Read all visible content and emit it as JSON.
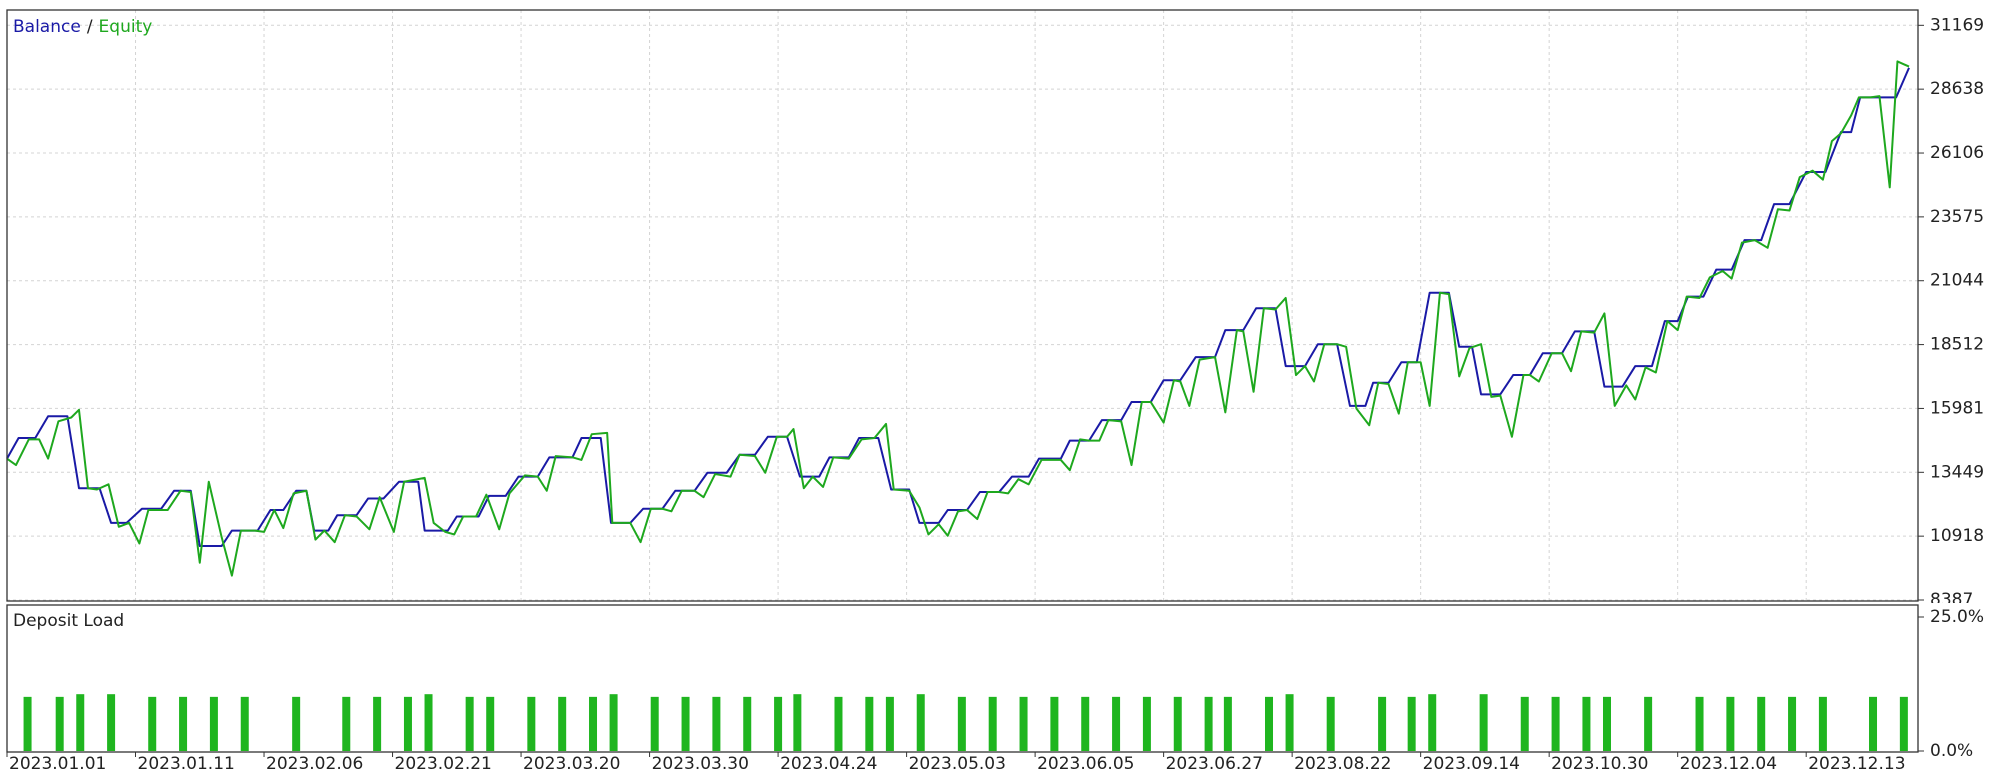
{
  "chart_data": [
    {
      "type": "line",
      "legend_separator": "/",
      "grid": true,
      "xlim": [
        0,
        148.7
      ],
      "ylim": [
        8387,
        31776
      ],
      "yticks": [
        8387,
        10918,
        13449,
        15981,
        18512,
        21044,
        23575,
        26106,
        28638,
        31169
      ],
      "xticks": [
        {
          "value": 0,
          "label": "2023.01.01"
        },
        {
          "value": 10,
          "label": "2023.01.11"
        },
        {
          "value": 20,
          "label": "2023.02.06"
        },
        {
          "value": 30,
          "label": "2023.02.21"
        },
        {
          "value": 40,
          "label": "2023.03.20"
        },
        {
          "value": 50,
          "label": "2023.03.30"
        },
        {
          "value": 60,
          "label": "2023.04.24"
        },
        {
          "value": 70,
          "label": "2023.05.03"
        },
        {
          "value": 80,
          "label": "2023.06.05"
        },
        {
          "value": 90,
          "label": "2023.06.27"
        },
        {
          "value": 100,
          "label": "2023.08.22"
        },
        {
          "value": 110,
          "label": "2023.09.14"
        },
        {
          "value": 120,
          "label": "2023.10.30"
        },
        {
          "value": 130,
          "label": "2023.12.04"
        },
        {
          "value": 140,
          "label": "2023.12.13"
        }
      ],
      "series": [
        {
          "name": "Balance",
          "color": "#1a1aa6",
          "x": [
            0,
            0.9,
            2.2,
            3.2,
            4.7,
            5.6,
            7.2,
            8.1,
            9.3,
            10.5,
            12,
            13,
            14.3,
            15,
            16.7,
            17.5,
            19.5,
            20.5,
            21.5,
            22.5,
            23.3,
            23.9,
            25,
            25.7,
            27.2,
            28.1,
            29.3,
            30.5,
            32,
            32.5,
            34.3,
            35,
            36.7,
            37.5,
            38.8,
            39.8,
            41.3,
            42.2,
            44,
            44.7,
            46.2,
            47,
            48.5,
            49.5,
            51,
            52,
            53.5,
            54.5,
            56,
            57,
            58.2,
            59.2,
            60.7,
            61.7,
            63.2,
            64,
            65.5,
            66.3,
            67.8,
            68.8,
            70.2,
            71,
            72.5,
            73.2,
            74.7,
            75.7,
            77.2,
            78.2,
            79.5,
            80.3,
            82,
            82.7,
            84.2,
            85.2,
            86.7,
            87.5,
            89,
            90,
            91.3,
            92.5,
            94,
            94.8,
            96.2,
            97.2,
            98.7,
            99.5,
            101,
            102,
            103.5,
            104.5,
            105.7,
            106.3,
            107.5,
            108.5,
            109.7,
            110.7,
            112.2,
            113,
            114,
            114.7,
            116.2,
            117.2,
            118.5,
            119.5,
            121,
            122,
            123.5,
            124.3,
            125.7,
            126.7,
            128,
            129,
            130,
            130.8,
            132,
            133,
            134.2,
            135.2,
            136.5,
            137.5,
            138.7,
            140,
            141.5,
            142.7,
            143.5,
            144.2,
            147,
            148
          ],
          "values": [
            13991,
            14807,
            14807,
            15673,
            15673,
            12819,
            12819,
            11443,
            11443,
            12004,
            12004,
            12717,
            12717,
            10526,
            10526,
            11138,
            11138,
            11953,
            11953,
            12717,
            12717,
            11138,
            11138,
            11749,
            11749,
            12412,
            12412,
            13074,
            13074,
            11138,
            11138,
            11698,
            11698,
            12513,
            12513,
            13278,
            13278,
            14042,
            14042,
            14807,
            14807,
            11443,
            11443,
            12004,
            12004,
            12717,
            12717,
            13431,
            13431,
            14144,
            14144,
            14858,
            14858,
            13278,
            13278,
            14042,
            14042,
            14807,
            14807,
            12768,
            12768,
            11443,
            11443,
            11953,
            11953,
            12666,
            12666,
            13278,
            13278,
            13991,
            13991,
            14705,
            14705,
            15520,
            15520,
            16234,
            16234,
            17100,
            17100,
            18017,
            18017,
            19087,
            19087,
            19954,
            19954,
            17660,
            17660,
            18527,
            18527,
            16081,
            16081,
            16998,
            16998,
            17813,
            17813,
            20565,
            20565,
            18425,
            18425,
            16539,
            16539,
            17304,
            17304,
            18170,
            18170,
            19036,
            19036,
            16845,
            16845,
            17660,
            17660,
            19444,
            19444,
            20412,
            20412,
            21482,
            21482,
            22654,
            22654,
            24081,
            24081,
            25355,
            25355,
            26935,
            26935,
            28311,
            28311,
            29483
          ]
        },
        {
          "name": "Equity",
          "color": "#1ea81e",
          "x": [
            0,
            0.7,
            1.7,
            2.5,
            3.2,
            4,
            5,
            5.6,
            6.3,
            7,
            7.9,
            8.7,
            9.5,
            10.3,
            11,
            12.5,
            13.5,
            14.3,
            15,
            15.7,
            16.7,
            17.5,
            18.2,
            19.3,
            20,
            20.8,
            21.5,
            22.3,
            23.3,
            24,
            24.7,
            25.5,
            26.3,
            27.2,
            28.2,
            29,
            30.1,
            30.9,
            32.5,
            33.2,
            34.1,
            34.8,
            35.5,
            36.5,
            37.3,
            38.3,
            39.1,
            40.3,
            41.3,
            42,
            42.7,
            44,
            44.7,
            45.5,
            46.7,
            47.1,
            48.5,
            49.3,
            50.1,
            51,
            51.7,
            52.5,
            53.5,
            54.2,
            55.1,
            56.3,
            57,
            58.2,
            59,
            59.9,
            60.7,
            61.2,
            62,
            62.7,
            63.5,
            64.3,
            65.5,
            66.5,
            67.5,
            68.4,
            69,
            70.2,
            71,
            71.7,
            72.5,
            73.2,
            74,
            74.7,
            75.5,
            76.3,
            77.2,
            77.9,
            78.7,
            79.5,
            80.5,
            82,
            82.7,
            83.5,
            84.2,
            85,
            85.7,
            86.7,
            87.5,
            88.3,
            89,
            90,
            90.8,
            91.3,
            92,
            92.8,
            94,
            94.8,
            95.7,
            96.2,
            97,
            97.8,
            98.7,
            99.5,
            100.3,
            101,
            101.7,
            102.5,
            103.5,
            104.2,
            105,
            106,
            106.7,
            107.5,
            108.3,
            109,
            110,
            110.7,
            111.5,
            112.2,
            113,
            113.8,
            114.7,
            115.5,
            116.2,
            117.1,
            118,
            118.5,
            119.2,
            120.2,
            121,
            121.7,
            122.5,
            123.5,
            124.3,
            125.1,
            126,
            126.7,
            127.5,
            128.3,
            129.2,
            130,
            130.7,
            131.7,
            132.5,
            133.5,
            134.2,
            135,
            136,
            137,
            137.8,
            138.7,
            139.5,
            140.5,
            141.3,
            142,
            142.7,
            143.5,
            144.1,
            145,
            145.7,
            146.5,
            147.1,
            148
          ],
          "values": [
            13991,
            13736,
            14756,
            14756,
            13991,
            15469,
            15622,
            15928,
            12819,
            12768,
            12972,
            11290,
            11443,
            10628,
            11953,
            11953,
            12717,
            12666,
            9864,
            13074,
            10883,
            9354,
            11138,
            11138,
            11087,
            11953,
            11239,
            12615,
            12717,
            10781,
            11138,
            10679,
            11749,
            11698,
            11188,
            12462,
            11087,
            13074,
            13227,
            11443,
            11087,
            10985,
            11698,
            11698,
            12564,
            11188,
            12615,
            13329,
            13278,
            12717,
            14093,
            14042,
            13940,
            14960,
            15010,
            11443,
            11443,
            10679,
            12004,
            12004,
            11902,
            12717,
            12717,
            12462,
            13380,
            13278,
            14144,
            14093,
            13431,
            14858,
            14858,
            15163,
            12819,
            13278,
            12870,
            14042,
            13991,
            14756,
            14807,
            15367,
            12768,
            12717,
            12055,
            10985,
            11392,
            10934,
            11902,
            11953,
            11596,
            12666,
            12666,
            12615,
            13176,
            12972,
            13940,
            13940,
            13533,
            14756,
            14705,
            14705,
            15520,
            15469,
            13736,
            16234,
            16234,
            15418,
            17100,
            17049,
            16081,
            17915,
            18017,
            15826,
            19087,
            19036,
            16641,
            19954,
            19903,
            20361,
            17304,
            17660,
            17049,
            18527,
            18527,
            18425,
            15979,
            15316,
            16998,
            16947,
            15775,
            17813,
            17813,
            16081,
            20565,
            20514,
            17253,
            18374,
            18527,
            16437,
            16488,
            14858,
            17304,
            17304,
            17049,
            18170,
            18170,
            17457,
            19036,
            18985,
            19750,
            16081,
            16896,
            16335,
            17609,
            17406,
            19444,
            19087,
            20412,
            20361,
            21177,
            21431,
            21126,
            22553,
            22654,
            22349,
            23878,
            23827,
            25152,
            25406,
            25050,
            26578,
            26884,
            27598,
            28311,
            28311,
            28362,
            24744,
            29738,
            29534
          ]
        }
      ]
    },
    {
      "type": "bar",
      "title": "Deposit Load",
      "color": "#1fb51f",
      "xlim": [
        0,
        148.7
      ],
      "ylim": [
        0,
        25
      ],
      "yticks": [
        {
          "value": 0,
          "label": "0.0%"
        },
        {
          "value": 25,
          "label": "25.0%"
        }
      ],
      "x": [
        1.6,
        4.1,
        5.7,
        8.1,
        11.3,
        13.7,
        16.1,
        18.5,
        22.5,
        26.4,
        28.8,
        31.2,
        32.8,
        36,
        37.6,
        40.8,
        43.2,
        45.6,
        47.2,
        50.4,
        52.8,
        55.2,
        57.6,
        60,
        61.5,
        64.7,
        67.1,
        68.7,
        71.1,
        74.3,
        76.7,
        79.1,
        81.5,
        83.9,
        86.3,
        88.7,
        91.1,
        93.5,
        95,
        98.2,
        99.8,
        103,
        107,
        109.3,
        110.9,
        114.9,
        118.1,
        120.5,
        122.9,
        124.5,
        127.7,
        131.7,
        134.1,
        136.5,
        138.9,
        141.3,
        145.2,
        147.6
      ],
      "values": [
        10.1,
        10.1,
        10.6,
        10.6,
        10.1,
        10.1,
        10.1,
        10.1,
        10.1,
        10.1,
        10.1,
        10.1,
        10.6,
        10.1,
        10.1,
        10.1,
        10.1,
        10.1,
        10.6,
        10.1,
        10.1,
        10.1,
        10.1,
        10.1,
        10.6,
        10.1,
        10.1,
        10.1,
        10.6,
        10.1,
        10.1,
        10.1,
        10.1,
        10.1,
        10.1,
        10.1,
        10.1,
        10.1,
        10.1,
        10.1,
        10.6,
        10.1,
        10.1,
        10.1,
        10.6,
        10.6,
        10.1,
        10.1,
        10.1,
        10.1,
        10.1,
        10.1,
        10.1,
        10.1,
        10.1,
        10.1,
        10.1,
        10.1
      ]
    }
  ]
}
